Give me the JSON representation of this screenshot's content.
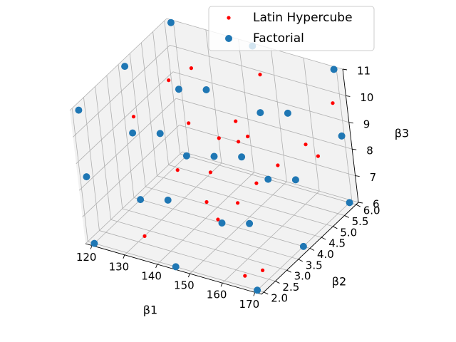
{
  "chart_data": {
    "type": "scatter",
    "projection": "3d",
    "grid": true,
    "legend_placement": "top-right",
    "xlabel": "β1",
    "ylabel": "β2",
    "zlabel": "β3",
    "xlim": [
      118,
      172
    ],
    "ylim": [
      1.9,
      6.1
    ],
    "zlim": [
      6,
      11
    ],
    "xticks": [
      "120",
      "130",
      "140",
      "150",
      "160",
      "170"
    ],
    "yticks": [
      "2.0",
      "2.5",
      "3.0",
      "3.5",
      "4.0",
      "4.5",
      "5.0",
      "5.5",
      "6.0"
    ],
    "zticks": [
      "6",
      "7",
      "8",
      "9",
      "10",
      "11"
    ],
    "series": [
      {
        "name": "Latin Hypercube",
        "color": "#ff0000",
        "marker": "small-dot",
        "points": [
          [
            133,
            2.4,
            6.4
          ],
          [
            165,
            2.2,
            6.2
          ],
          [
            170,
            2.3,
            6.5
          ],
          [
            145,
            3.5,
            7.2
          ],
          [
            152,
            3.0,
            7.2
          ],
          [
            154,
            3.6,
            7.4
          ],
          [
            128,
            4.6,
            6.9
          ],
          [
            140,
            4.4,
            7.4
          ],
          [
            155,
            4.3,
            7.6
          ],
          [
            135,
            5.5,
            7.6
          ],
          [
            145,
            5.4,
            8.1
          ],
          [
            160,
            4.6,
            8.2
          ],
          [
            165,
            5.6,
            7.9
          ],
          [
            130,
            5.0,
            8.4
          ],
          [
            122,
            5.4,
            9.4
          ],
          [
            128,
            5.6,
            9.9
          ],
          [
            145,
            5.0,
            9.0
          ],
          [
            150,
            4.4,
            8.9
          ],
          [
            168,
            4.8,
            9.1
          ],
          [
            170,
            5.8,
            9.9
          ],
          [
            148,
            5.8,
            10.2
          ],
          [
            125,
            3.5,
            9.7
          ]
        ]
      },
      {
        "name": "Factorial",
        "color": "#1f77b4",
        "marker": "dot",
        "points": [
          [
            120,
            2,
            6
          ],
          [
            145,
            2,
            6
          ],
          [
            170,
            2,
            6
          ],
          [
            120,
            4,
            6
          ],
          [
            145,
            4,
            6
          ],
          [
            170,
            4,
            6
          ],
          [
            120,
            6,
            6
          ],
          [
            145,
            6,
            6
          ],
          [
            170,
            6,
            6
          ],
          [
            120,
            2,
            8.5
          ],
          [
            145,
            2,
            8.5
          ],
          [
            170,
            2,
            8.5
          ],
          [
            120,
            4,
            8.5
          ],
          [
            145,
            4,
            8.5
          ],
          [
            170,
            4,
            8.5
          ],
          [
            120,
            6,
            8.5
          ],
          [
            145,
            6,
            8.5
          ],
          [
            170,
            6,
            8.5
          ],
          [
            120,
            2,
            11
          ],
          [
            145,
            2,
            11
          ],
          [
            170,
            2,
            11
          ],
          [
            120,
            4,
            11
          ],
          [
            145,
            4,
            11
          ],
          [
            170,
            4,
            11
          ],
          [
            120,
            6,
            11
          ],
          [
            145,
            6,
            11
          ],
          [
            170,
            6,
            11
          ]
        ]
      }
    ]
  }
}
